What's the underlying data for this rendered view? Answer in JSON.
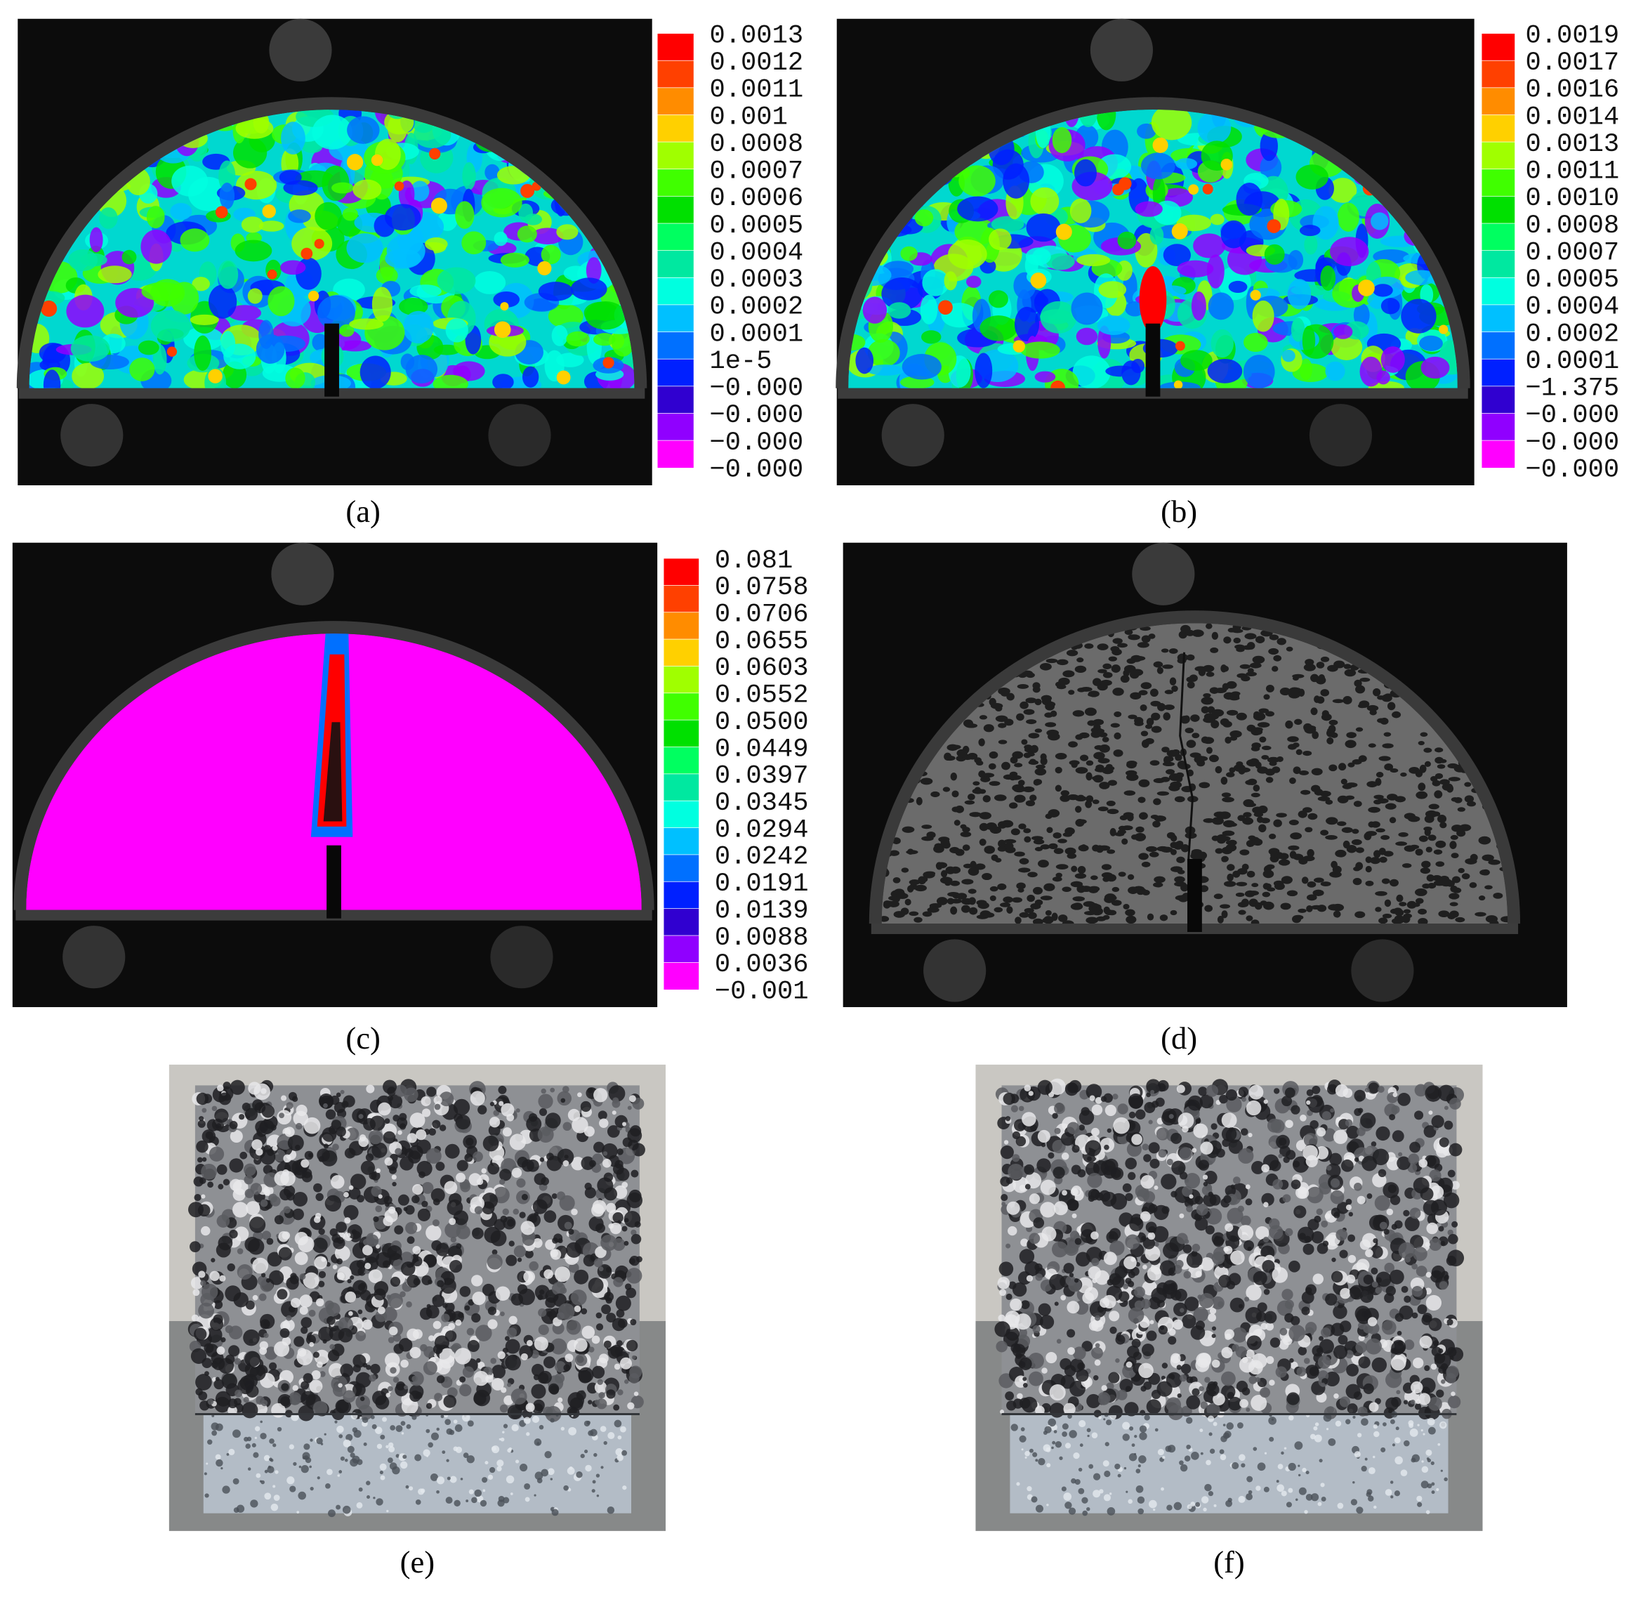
{
  "panels": [
    {
      "label": "(a)",
      "colorbar": [
        "0.0013",
        "0.0012",
        "0.0011",
        "0.001",
        "0.0008",
        "0.0007",
        "0.0006",
        "0.0005",
        "0.0004",
        "0.0003",
        "0.0002",
        "0.0001",
        "1e-5",
        "−0.000",
        "−0.000",
        "−0.000",
        "−0.000"
      ]
    },
    {
      "label": "(b)",
      "colorbar": [
        "0.0019",
        "0.0017",
        "0.0016",
        "0.0014",
        "0.0013",
        "0.0011",
        "0.0010",
        "0.0008",
        "0.0007",
        "0.0005",
        "0.0004",
        "0.0002",
        "0.0001",
        "−1.375",
        "−0.000",
        "−0.000",
        "−0.000"
      ]
    },
    {
      "label": "(c)",
      "colorbar": [
        "0.081",
        "0.0758",
        "0.0706",
        "0.0655",
        "0.0603",
        "0.0552",
        "0.0500",
        "0.0449",
        "0.0397",
        "0.0345",
        "0.0294",
        "0.0242",
        "0.0191",
        "0.0139",
        "0.0088",
        "0.0036",
        "−0.001"
      ]
    },
    {
      "label": "(d)"
    },
    {
      "label": "(e)"
    },
    {
      "label": "(f)"
    }
  ]
}
